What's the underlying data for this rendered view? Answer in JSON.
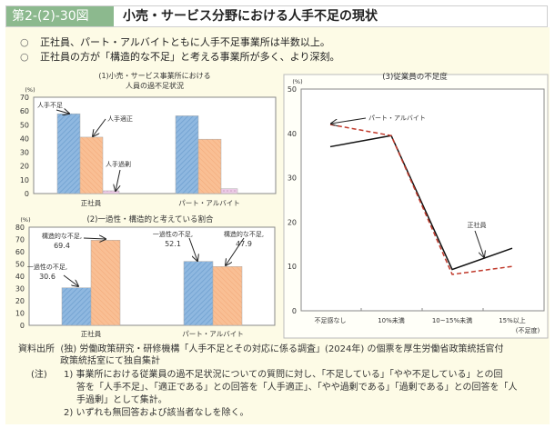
{
  "header": {
    "figure_no": "第2-(2)-30図",
    "title": "小売・サービス分野における人手不足の現状"
  },
  "bullets": [
    {
      "mark": "○",
      "text": "正社員、パート・アルバイトともに人手不足事業所は半数以上。"
    },
    {
      "mark": "○",
      "text": "正社員の方が「構造的な不足」と考える事業所が多く、より深刻。"
    }
  ],
  "colors": {
    "blue": "#8fb8e0",
    "orange": "#f9bf94",
    "pink": "#eccbe6",
    "line_seishain": "#111111",
    "line_part": "#c0392b"
  },
  "chart_data": [
    {
      "type": "bar",
      "title": "(1)小売・サービス事業所における",
      "title2": "人員の過不足状況",
      "ylabel": "(%)",
      "ylim": [
        0,
        70
      ],
      "yticks": [
        0,
        10,
        20,
        30,
        40,
        50,
        60,
        70
      ],
      "categories": [
        "正社員",
        "パート・アルバイト"
      ],
      "series": [
        {
          "name": "人手不足",
          "values": [
            58,
            56.5
          ]
        },
        {
          "name": "人手適正",
          "values": [
            41,
            39.5
          ]
        },
        {
          "name": "人手過剰",
          "values": [
            2,
            3.5
          ]
        }
      ],
      "annotations": [
        "人手不足",
        "人手適正",
        "人手過剰"
      ]
    },
    {
      "type": "bar",
      "title": "(2)一過性・構造的と考えている割合",
      "ylabel": "(%)",
      "ylim": [
        0,
        80
      ],
      "yticks": [
        0,
        10,
        20,
        30,
        40,
        50,
        60,
        70,
        80
      ],
      "categories": [
        "正社員",
        "パート・アルバイト"
      ],
      "series": [
        {
          "name": "一過性の不足",
          "values": [
            30.6,
            52.1
          ]
        },
        {
          "name": "構造的な不足",
          "values": [
            69.4,
            47.9
          ]
        }
      ],
      "annotations": [
        {
          "label": "構造的な不足,",
          "value": "69.4"
        },
        {
          "label": "一過性の不足,",
          "value": "30.6"
        },
        {
          "label": "一過性の不足,",
          "value": "52.1"
        },
        {
          "label": "構造的な不足,",
          "value": "47.9"
        }
      ]
    },
    {
      "type": "line",
      "title": "(3)従業員の不足度",
      "ylabel": "(%)",
      "xlabel": "(不足度)",
      "ylim": [
        0,
        50
      ],
      "yticks": [
        0,
        10,
        20,
        30,
        40,
        50
      ],
      "categories": [
        "不足感なし",
        "10%未満",
        "10~15%未満",
        "15%以上"
      ],
      "series": [
        {
          "name": "正社員",
          "values": [
            37,
            39.5,
            9.3,
            14.1
          ]
        },
        {
          "name": "パート・アルバイト",
          "values": [
            42,
            39.5,
            8.2,
            10
          ]
        }
      ]
    }
  ],
  "source": {
    "label": "資料出所",
    "text": "(独) 労働政策研究・研修機構「人手不足とその対応に係る調査」(2024年) の個票を厚生労働省政策統括官付",
    "text2": "政策統括室にて独自集計"
  },
  "notes": {
    "label": "(注)",
    "n1a": "1) 事業所における従業員の過不足状況についての質問に対し、「不足している」「やや不足している」との回",
    "n1b": "答を「人手不足」、「適正である」との回答を「人手適正」、「やや過剰である」「過剰である」との回答を「人",
    "n1c": "手過剰」として集計。",
    "n2": "2) いずれも無回答および該当者なしを除く。"
  }
}
